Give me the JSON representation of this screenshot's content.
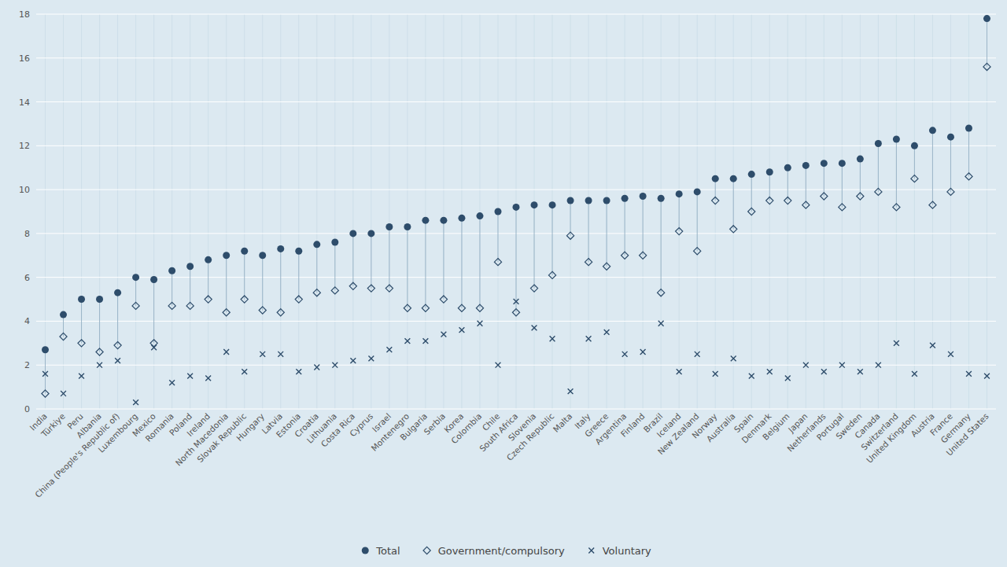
{
  "chart_data": {
    "type": "dot",
    "categories": [
      "India",
      "Türkiye",
      "Peru",
      "Albania",
      "China (People's Republic of)",
      "Luxembourg",
      "Mexico",
      "Romania",
      "Poland",
      "Ireland",
      "North Macedonia",
      "Slovak Republic",
      "Hungary",
      "Latvia",
      "Estonia",
      "Croatia",
      "Lithuania",
      "Costa Rica",
      "Cyprus",
      "Israel",
      "Montenegro",
      "Bulgaria",
      "Serbia",
      "Korea",
      "Colombia",
      "Chile",
      "South Africa",
      "Slovenia",
      "Czech Republic",
      "Malta",
      "Italy",
      "Greece",
      "Argentina",
      "Finland",
      "Brazil",
      "Iceland",
      "New Zealand",
      "Norway",
      "Australia",
      "Spain",
      "Denmark",
      "Belgium",
      "Japan",
      "Netherlands",
      "Portugal",
      "Sweden",
      "Canada",
      "Switzerland",
      "United Kingdom",
      "Austria",
      "France",
      "Germany",
      "United States"
    ],
    "series": [
      {
        "name": "Total",
        "color": "#2e4d6b",
        "marker": "circle",
        "values": [
          2.7,
          4.3,
          5.0,
          5.0,
          5.3,
          6.0,
          5.9,
          6.3,
          6.5,
          6.8,
          7.0,
          7.2,
          7.0,
          7.3,
          7.2,
          7.5,
          7.6,
          8.0,
          8.0,
          8.3,
          8.3,
          8.6,
          8.6,
          8.7,
          8.8,
          9.0,
          9.2,
          9.3,
          9.3,
          9.5,
          9.5,
          9.5,
          9.6,
          9.7,
          9.6,
          9.8,
          9.9,
          10.5,
          10.5,
          10.7,
          10.8,
          11.0,
          11.1,
          11.2,
          11.2,
          11.4,
          12.1,
          12.3,
          12.0,
          12.7,
          12.4,
          12.8,
          17.8
        ]
      },
      {
        "name": "Government/compulsory",
        "color": "#2e4d6b",
        "marker": "diamond",
        "values": [
          0.7,
          3.3,
          3.0,
          2.6,
          2.9,
          4.7,
          3.0,
          4.7,
          4.7,
          5.0,
          4.4,
          5.0,
          4.5,
          4.4,
          5.0,
          5.3,
          5.4,
          5.6,
          5.5,
          5.5,
          4.6,
          4.6,
          5.0,
          4.6,
          4.6,
          6.7,
          4.4,
          5.5,
          6.1,
          7.9,
          6.7,
          6.5,
          7.0,
          7.0,
          5.3,
          8.1,
          7.2,
          9.5,
          8.2,
          9.0,
          9.5,
          9.5,
          9.3,
          9.7,
          9.2,
          9.7,
          9.9,
          9.2,
          10.5,
          9.3,
          9.9,
          10.6,
          15.6
        ]
      },
      {
        "name": "Voluntary",
        "color": "#2e4d6b",
        "marker": "x",
        "values": [
          1.6,
          0.7,
          1.5,
          2.0,
          2.2,
          0.3,
          2.8,
          1.2,
          1.5,
          1.4,
          2.6,
          1.7,
          2.5,
          2.5,
          1.7,
          1.9,
          2.0,
          2.2,
          2.3,
          2.7,
          3.1,
          3.1,
          3.4,
          3.6,
          3.9,
          2.0,
          4.9,
          3.7,
          3.2,
          0.8,
          3.2,
          3.5,
          2.5,
          2.6,
          3.9,
          1.7,
          2.5,
          1.6,
          2.3,
          1.5,
          1.7,
          1.4,
          2.0,
          1.7,
          2.0,
          1.7,
          2.0,
          3.0,
          1.6,
          2.9,
          2.5,
          1.6,
          1.5
        ]
      }
    ],
    "ylim": [
      0,
      18
    ],
    "yticks": [
      0,
      2,
      4,
      6,
      8,
      10,
      12,
      14,
      16,
      18
    ],
    "grid": true,
    "legend": "bottom"
  }
}
